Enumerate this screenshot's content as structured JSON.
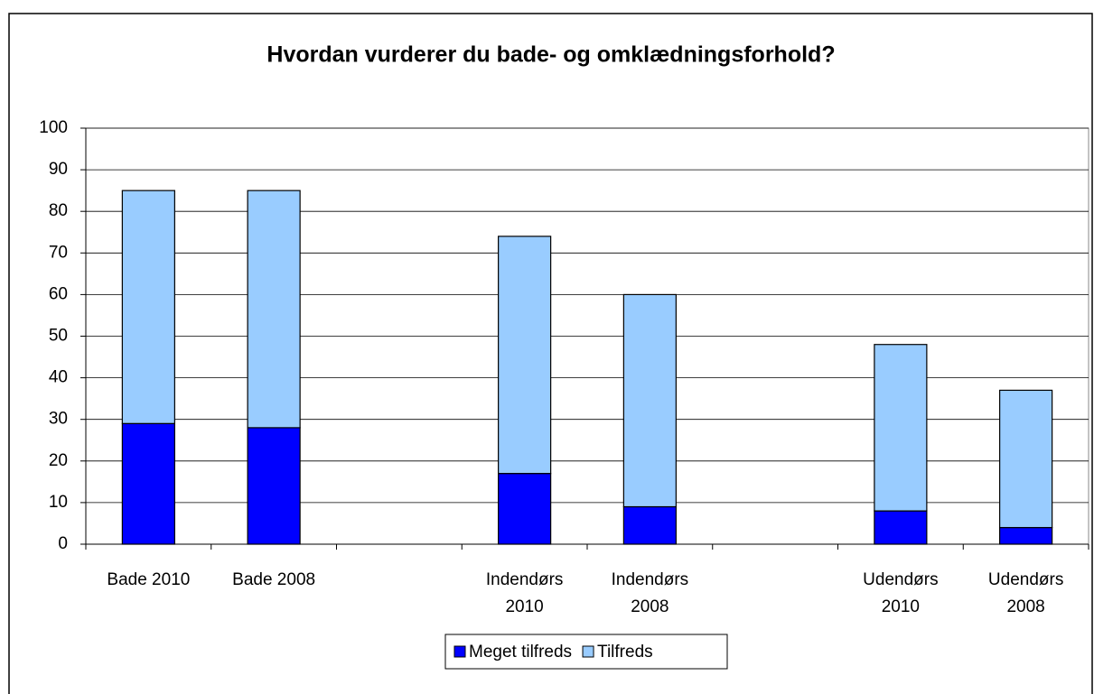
{
  "chart_data": {
    "type": "stacked_bar",
    "title": "Hvordan vurderer du bade- og omklædningsforhold?",
    "categories": [
      "Bade 2010",
      "Bade 2008",
      null,
      "Indendørs\n2010",
      "Indendørs\n2008",
      null,
      "Udendørs\n2010",
      "Udendørs\n2008"
    ],
    "series": [
      {
        "name": "Meget tilfreds",
        "color": "#0000ff",
        "values": [
          29,
          28,
          null,
          17,
          9,
          null,
          8,
          4
        ]
      },
      {
        "name": "Tilfreds",
        "color": "#99ccff",
        "values": [
          56,
          57,
          null,
          57,
          51,
          null,
          40,
          33
        ]
      }
    ],
    "ylim": [
      0,
      100
    ],
    "yticks": [
      0,
      10,
      20,
      30,
      40,
      50,
      60,
      70,
      80,
      90,
      100
    ],
    "grid": true,
    "legend": "bottom"
  }
}
